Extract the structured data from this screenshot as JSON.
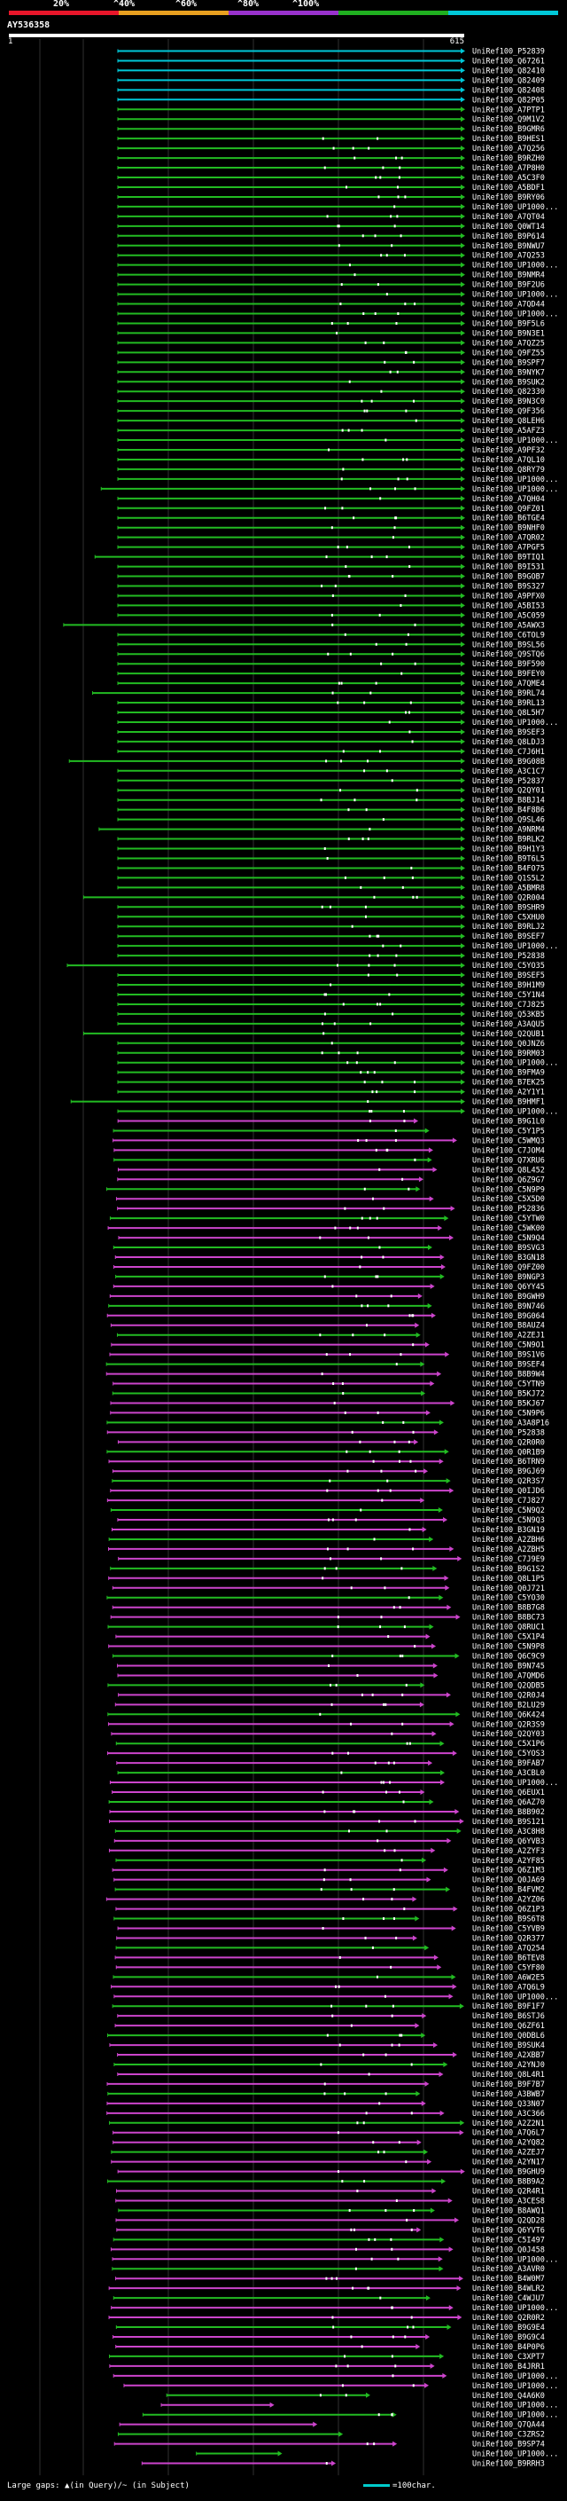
{
  "legend": {
    "labels": [
      "20%",
      "^40%",
      "^60%",
      "^80%",
      "^100%"
    ],
    "colors": [
      "#e8162a",
      "#e8a020",
      "#9932cc",
      "#20b020",
      "#00c8d8"
    ]
  },
  "query": {
    "name": "AY536358",
    "start": "1",
    "end": "615"
  },
  "hit_colors": {
    "cyan": "#00c8d8",
    "green": "#22bb22",
    "magenta": "#cc44cc",
    "grid": "#303030"
  },
  "hits": [
    "UniRef100_P52839",
    "UniRef100_Q67261",
    "UniRef100_Q82410",
    "UniRef100_Q82409",
    "UniRef100_Q82408",
    "UniRef100_Q82P05",
    "UniRef100_A7PTP1",
    "UniRef100_Q9M1V2",
    "UniRef100_B9GMR6",
    "UniRef100_B9HES1",
    "UniRef100_A7Q256",
    "UniRef100_B9RZH0",
    "UniRef100_A7P8H0",
    "UniRef100_A5C3F0",
    "UniRef100_A5BDF1",
    "UniRef100_B9RY06",
    "UniRef100_UP1000...",
    "UniRef100_A7QT04",
    "UniRef100_Q0WT14",
    "UniRef100_B9P614",
    "UniRef100_B9NWU7",
    "UniRef100_A7Q253",
    "UniRef100_UP1000...",
    "UniRef100_B9NMR4",
    "UniRef100_B9F2U6",
    "UniRef100_UP1000...",
    "UniRef100_A7QD44",
    "UniRef100_UP1000...",
    "UniRef100_B9F5L6",
    "UniRef100_B9N3E1",
    "UniRef100_A7QZ25",
    "UniRef100_Q9FZ55",
    "UniRef100_B9SPF7",
    "UniRef100_B9NYK7",
    "UniRef100_B9SUK2",
    "UniRef100_Q82330",
    "UniRef100_B9N3C0",
    "UniRef100_Q9F356",
    "UniRef100_Q8LEH6",
    "UniRef100_A5AFZ3",
    "UniRef100_UP1000...",
    "UniRef100_A9PF32",
    "UniRef100_A7QL10",
    "UniRef100_Q8RY79",
    "UniRef100_UP1000...",
    "UniRef100_UP1000...",
    "UniRef100_A7QH04",
    "UniRef100_Q9FZ01",
    "UniRef100_B6TGE4",
    "UniRef100_B9NHF0",
    "UniRef100_A7QR02",
    "UniRef100_A7PGF5",
    "UniRef100_B9TIQ1",
    "UniRef100_B9I531",
    "UniRef100_B9GOB7",
    "UniRef100_B9S327",
    "UniRef100_A9PFX0",
    "UniRef100_A5BI53",
    "UniRef100_A5C059",
    "UniRef100_A5AWX3",
    "UniRef100_C6TOL9",
    "UniRef100_B9SL56",
    "UniRef100_Q9STQ6",
    "UniRef100_B9F590",
    "UniRef100_B9FEY0",
    "UniRef100_A7QME4",
    "UniRef100_B9RL74",
    "UniRef100_B9RL13",
    "UniRef100_Q8L5H7",
    "UniRef100_UP1000...",
    "UniRef100_B9SEF3",
    "UniRef100_Q8LDJ3",
    "UniRef100_C7J6H1",
    "UniRef100_B9G08B",
    "UniRef100_A3C1C7",
    "UniRef100_P52837",
    "UniRef100_Q2QY01",
    "UniRef100_B8BJ14",
    "UniRef100_B4F8B6",
    "UniRef100_Q9SL46",
    "UniRef100_A9NRM4",
    "UniRef100_B9RLK2",
    "UniRef100_B9H1Y3",
    "UniRef100_B9T6L5",
    "UniRef100_B4FO75",
    "UniRef100_Q1S5L2",
    "UniRef100_A5BMR8",
    "UniRef100_Q2R004",
    "UniRef100_B9SHR9",
    "UniRef100_C5XHU0",
    "UniRef100_B9RLJ2",
    "UniRef100_B9SEF7",
    "UniRef100_UP1000...",
    "UniRef100_P52838",
    "UniRef100_C5YO35",
    "UniRef100_B9SEF5",
    "UniRef100_B9H1M9",
    "UniRef100_C5Y1N4",
    "UniRef100_C7J825",
    "UniRef100_Q53KB5",
    "UniRef100_A3AQU5",
    "UniRef100_Q2QUB1",
    "UniRef100_Q0JNZ6",
    "UniRef100_B9RM03",
    "UniRef100_UP1000...",
    "UniRef100_B9FMA9",
    "UniRef100_B7EK25",
    "UniRef100_A2Y1Y1",
    "UniRef100_B9HMF1",
    "UniRef100_UP1000...",
    "UniRef100_B9G1L0",
    "UniRef100_C5Y1P5",
    "UniRef100_C5WMQ3",
    "UniRef100_C7JOM4",
    "UniRef100_Q7XRU6",
    "UniRef100_Q8L452",
    "UniRef100_Q6Z9G7",
    "UniRef100_C5N9P9",
    "UniRef100_C5X5D0",
    "UniRef100_P52836",
    "UniRef100_C5YTW0",
    "UniRef100_C5WK00",
    "UniRef100_C5N9Q4",
    "UniRef100_B9SVG3",
    "UniRef100_B3GN18",
    "UniRef100_Q9FZ00",
    "UniRef100_B9NGP3",
    "UniRef100_Q6YY45",
    "UniRef100_B9GWH9",
    "UniRef100_B9N746",
    "UniRef100_B9G064",
    "UniRef100_B8AUZ4",
    "UniRef100_A2ZEJ1",
    "UniRef100_C5N9O1",
    "UniRef100_B9S1V6",
    "UniRef100_B9SEF4",
    "UniRef100_B8B9W4",
    "UniRef100_C5YTN9",
    "UniRef100_B5KJ72",
    "UniRef100_B5KJ67",
    "UniRef100_C5N9P6",
    "UniRef100_A3A8P16",
    "UniRef100_P52838",
    "UniRef100_Q2R0R0",
    "UniRef100_Q0R1B9",
    "UniRef100_B6TRN9",
    "UniRef100_B9GJ69",
    "UniRef100_Q2R3S7",
    "UniRef100_Q0IJD6",
    "UniRef100_C7J827",
    "UniRef100_C5N9Q2",
    "UniRef100_C5N9Q3",
    "UniRef100_B3GN19",
    "UniRef100_A2ZBH6",
    "UniRef100_A2ZBH5",
    "UniRef100_C7J9E9",
    "UniRef100_B9G1S2",
    "UniRef100_Q8L1P5",
    "UniRef100_Q0J721",
    "UniRef100_C5YO30",
    "UniRef100_B8B7G8",
    "UniRef100_B8BC73",
    "UniRef100_Q8RUC1",
    "UniRef100_C5X1P4",
    "UniRef100_C5N9P8",
    "UniRef100_Q6C9C9",
    "UniRef100_B9N745",
    "UniRef100_A7QMD6",
    "UniRef100_Q2QDB5",
    "UniRef100_Q2R0J4",
    "UniRef100_B2LU29",
    "UniRef100_Q6K424",
    "UniRef100_Q2R3S9",
    "UniRef100_Q2QY03",
    "UniRef100_C5X1P6",
    "UniRef100_C5YOS3",
    "UniRef100_B9FAB7",
    "UniRef100_A3CBL0",
    "UniRef100_UP1000...",
    "UniRef100_Q6EUX1",
    "UniRef100_Q6AZ70",
    "UniRef100_B8B902",
    "UniRef100_B9S121",
    "UniRef100_A3C8H8",
    "UniRef100_Q6YVB3",
    "UniRef100_A2ZYF3",
    "UniRef100_A2YF85",
    "UniRef100_Q6Z1M3",
    "UniRef100_Q0JA69",
    "UniRef100_B4FVM2",
    "UniRef100_A2YZ06",
    "UniRef100_Q6Z1P3",
    "UniRef100_B9S6T8",
    "UniRef100_C5YVB9",
    "UniRef100_Q2R377",
    "UniRef100_A7Q254",
    "UniRef100_B6TEV8",
    "UniRef100_C5YF80",
    "UniRef100_A6W2E5",
    "UniRef100_A7Q6L9",
    "UniRef100_UP1000...",
    "UniRef100_B9F1F7",
    "UniRef100_B6STJ6",
    "UniRef100_Q6ZF61",
    "UniRef100_Q0DBL6",
    "UniRef100_B9SUK4",
    "UniRef100_A2XBB7",
    "UniRef100_A2YNJ0",
    "UniRef100_Q8L4R1",
    "UniRef100_B9F7B7",
    "UniRef100_A3BWB7",
    "UniRef100_Q33N07",
    "UniRef100_A3C366",
    "UniRef100_A2Z2N1",
    "UniRef100_A7Q6L7",
    "UniRef100_A2YQ82",
    "UniRef100_A2ZEJ7",
    "UniRef100_A2YN17",
    "UniRef100_B9GHU9",
    "UniRef100_B8B9A2",
    "UniRef100_Q2R4R1",
    "UniRef100_A3CES8",
    "UniRef100_B8AWQ1",
    "UniRef100_Q2QD28",
    "UniRef100_Q6YVT6",
    "UniRef100_C5I497",
    "UniRef100_Q0J458",
    "UniRef100_UP1000...",
    "UniRef100_A3AVR0",
    "UniRef100_B4W0M7",
    "UniRef100_B4WLR2",
    "UniRef100_C4WJU7",
    "UniRef100_UP1000...",
    "UniRef100_Q2R0R2",
    "UniRef100_B9G9E4",
    "UniRef100_B9G9C4",
    "UniRef100_B4P0P6",
    "UniRef100_C3XPT7",
    "UniRef100_B4JRR1",
    "UniRef100_UP1000...",
    "UniRef100_UP1000...",
    "UniRef100_Q4A6K0",
    "UniRef100_UP1000...",
    "UniRef100_UP1000...",
    "UniRef100_Q7QA44",
    "UniRef100_C3ZRS2",
    "UniRef100_B9SP74",
    "UniRef100_UP1000...",
    "UniRef100_B9RRH3"
  ],
  "footer": {
    "label": "Large gaps: ",
    "q_gap": "(in Query)",
    "s_gap": "/~ (in Subject)",
    "scale": "=100char."
  }
}
